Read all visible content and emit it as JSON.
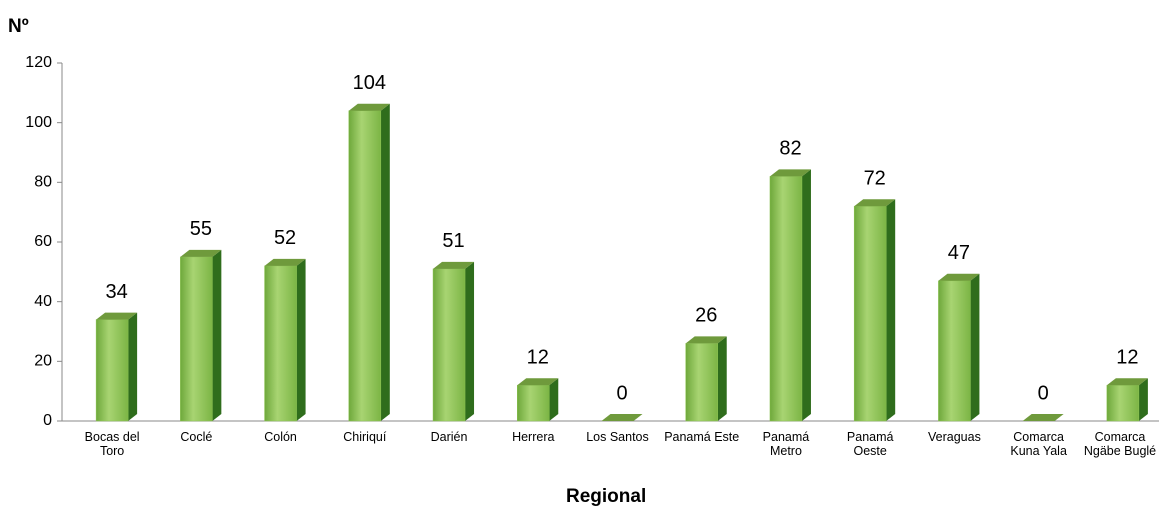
{
  "chart_data": {
    "type": "bar3d",
    "y_axis_label": "Nº",
    "x_axis_label": "Regional",
    "categories": [
      "Bocas del Toro",
      "Coclé",
      "Colón",
      "Chiriquí",
      "Darién",
      "Herrera",
      "Los Santos",
      "Panamá Este",
      "Panamá Metro",
      "Panamá Oeste",
      "Veraguas",
      "Comarca Kuna Yala",
      "Comarca Ngäbe Buglé"
    ],
    "values": [
      34,
      55,
      52,
      104,
      51,
      12,
      0,
      26,
      82,
      72,
      47,
      0,
      12
    ],
    "color": "#8cc451",
    "ylim": [
      0,
      120
    ],
    "yticks": [
      0,
      20,
      40,
      60,
      80,
      100,
      120
    ]
  }
}
